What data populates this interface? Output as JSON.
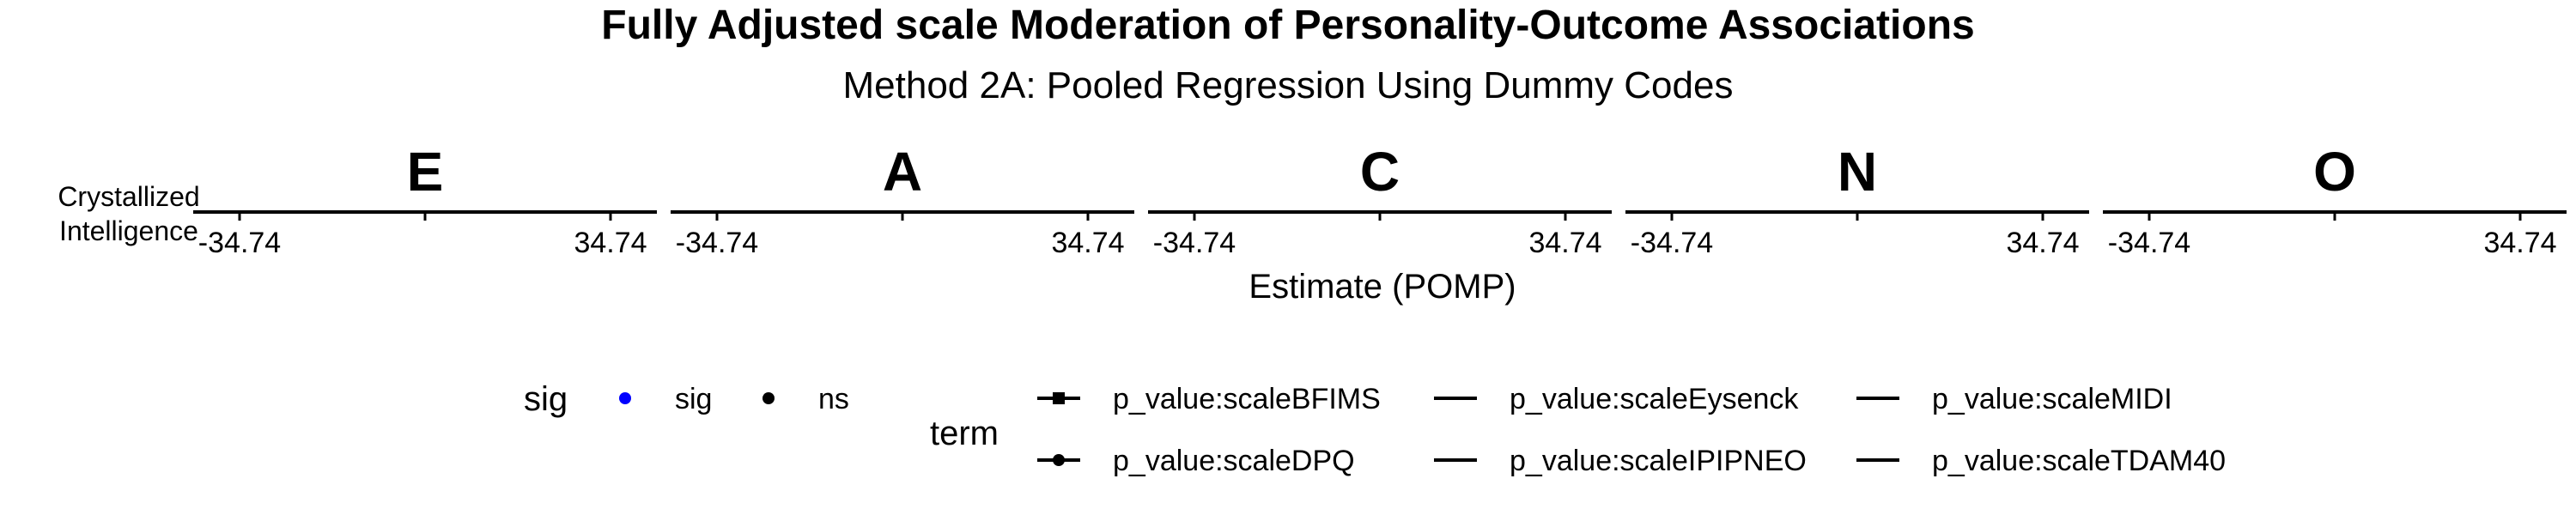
{
  "chart_data": {
    "type": "scatter",
    "title": "Fully Adjusted scale Moderation of Personality-Outcome Associations",
    "subtitle": "Method 2A: Pooled Regression Using Dummy Codes",
    "xlabel": "Estimate (POMP)",
    "ylabel": "",
    "row_label": "Crystallized Intelligence",
    "panels": [
      "E",
      "A",
      "C",
      "N",
      "O"
    ],
    "xlim": [
      -34.74,
      34.74
    ],
    "x_ticks": [
      "-34.74",
      "34.74"
    ],
    "series": [],
    "legend": {
      "placement": "bottom",
      "sig": {
        "title": "sig",
        "items": [
          {
            "label": "sig",
            "color": "#0000ff"
          },
          {
            "label": "ns",
            "color": "#000000"
          }
        ]
      },
      "term": {
        "title": "term",
        "items": [
          {
            "label": "p_value:scaleBFIMS",
            "marker": "square"
          },
          {
            "label": "p_value:scaleDPQ",
            "marker": "circle"
          },
          {
            "label": "p_value:scaleEysenck",
            "marker": "none"
          },
          {
            "label": "p_value:scaleIPIPNEO",
            "marker": "none"
          },
          {
            "label": "p_value:scaleMIDI",
            "marker": "none"
          },
          {
            "label": "p_value:scaleTDAM40",
            "marker": "none"
          }
        ]
      }
    }
  }
}
